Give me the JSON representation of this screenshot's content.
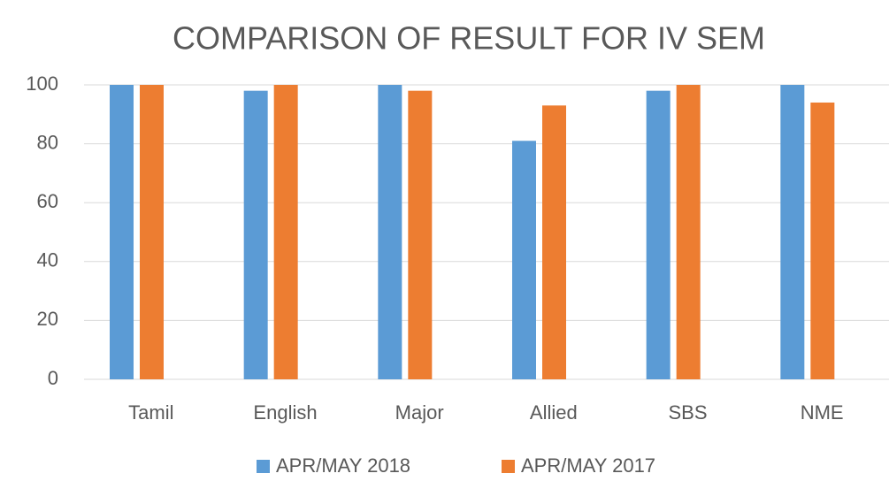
{
  "chart_data": {
    "type": "bar",
    "title": "COMPARISON  OF RESULT FOR IV SEM",
    "categories": [
      "Tamil",
      "English",
      "Major",
      "Allied",
      "SBS",
      "NME"
    ],
    "series": [
      {
        "name": "APR/MAY 2018",
        "color": "#5b9bd5",
        "values": [
          100,
          98,
          100,
          81,
          98,
          100
        ]
      },
      {
        "name": "APR/MAY 2017",
        "color": "#ed7d31",
        "values": [
          100,
          100,
          98,
          93,
          100,
          94
        ]
      }
    ],
    "ylim": [
      0,
      100
    ],
    "yticks": [
      0,
      20,
      40,
      60,
      80,
      100
    ],
    "grid": true,
    "legend": "bottom"
  }
}
